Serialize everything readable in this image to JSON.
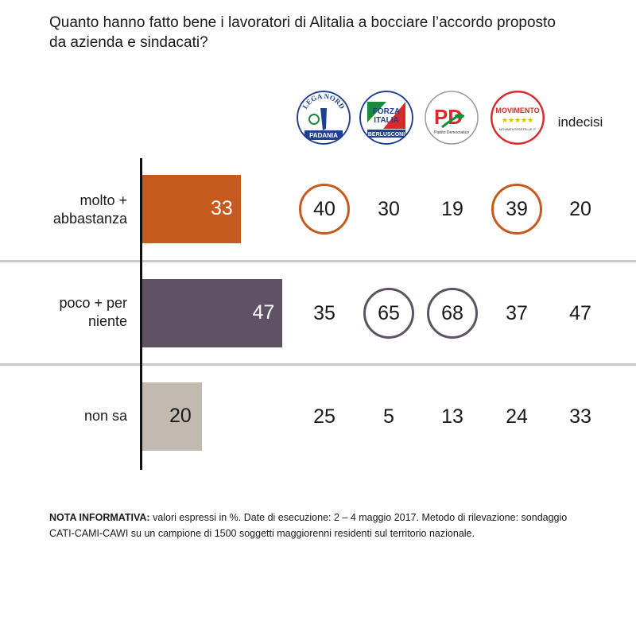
{
  "title_lines": [
    "Quanto hanno fatto bene i lavoratori di Alitalia a bocciare l’accordo proposto",
    "da azienda e sindacati?"
  ],
  "colors": {
    "orange": "#c65a1e",
    "purple": "#5e5264",
    "gray": "#c2bab1"
  },
  "logos": [
    {
      "name": "lega-nord-logo",
      "text_top": "LEGA NORD",
      "text_bottom": "PADANIA"
    },
    {
      "name": "forza-italia-logo",
      "text_top": "FORZA",
      "text_mid": "ITALIA",
      "text_bottom": "BERLUSCONI"
    },
    {
      "name": "pd-logo",
      "text_top": "PD",
      "text_bottom": "Partito Democratico"
    },
    {
      "name": "m5s-logo",
      "text_top": "MOVIMENTO",
      "text_bottom": "MOVIMENTO5STELLE.IT"
    }
  ],
  "indecisi_label": "indecisi",
  "chart_data": {
    "type": "bar",
    "orientation": "horizontal",
    "categories": [
      "molto + abbastanza",
      "poco + per niente",
      "non sa"
    ],
    "values": [
      33,
      47,
      20
    ],
    "bar_colors": [
      "#c65a1e",
      "#5e5264",
      "#c2bab1"
    ],
    "row_labels": [
      [
        "molto +",
        "abbastanza"
      ],
      [
        "poco + per",
        "niente"
      ],
      [
        "non sa"
      ]
    ],
    "table": {
      "columns": [
        "Lega Nord",
        "Forza Italia",
        "PD",
        "M5S",
        "indecisi"
      ],
      "rows": [
        [
          40,
          30,
          19,
          39,
          20
        ],
        [
          35,
          65,
          68,
          37,
          47
        ],
        [
          25,
          5,
          13,
          24,
          33
        ]
      ],
      "highlighted": [
        [
          0,
          0
        ],
        [
          0,
          3
        ],
        [
          1,
          1
        ],
        [
          1,
          2
        ]
      ]
    }
  },
  "note": {
    "bold": "NOTA INFORMATIVA:",
    "text": " valori espressi in %. Date di esecuzione: 2 – 4 maggio 2017. Metodo di rilevazione: sondaggio CATI-CAMI-CAWI su un campione di 1500 soggetti maggiorenni residenti sul territorio nazionale."
  }
}
